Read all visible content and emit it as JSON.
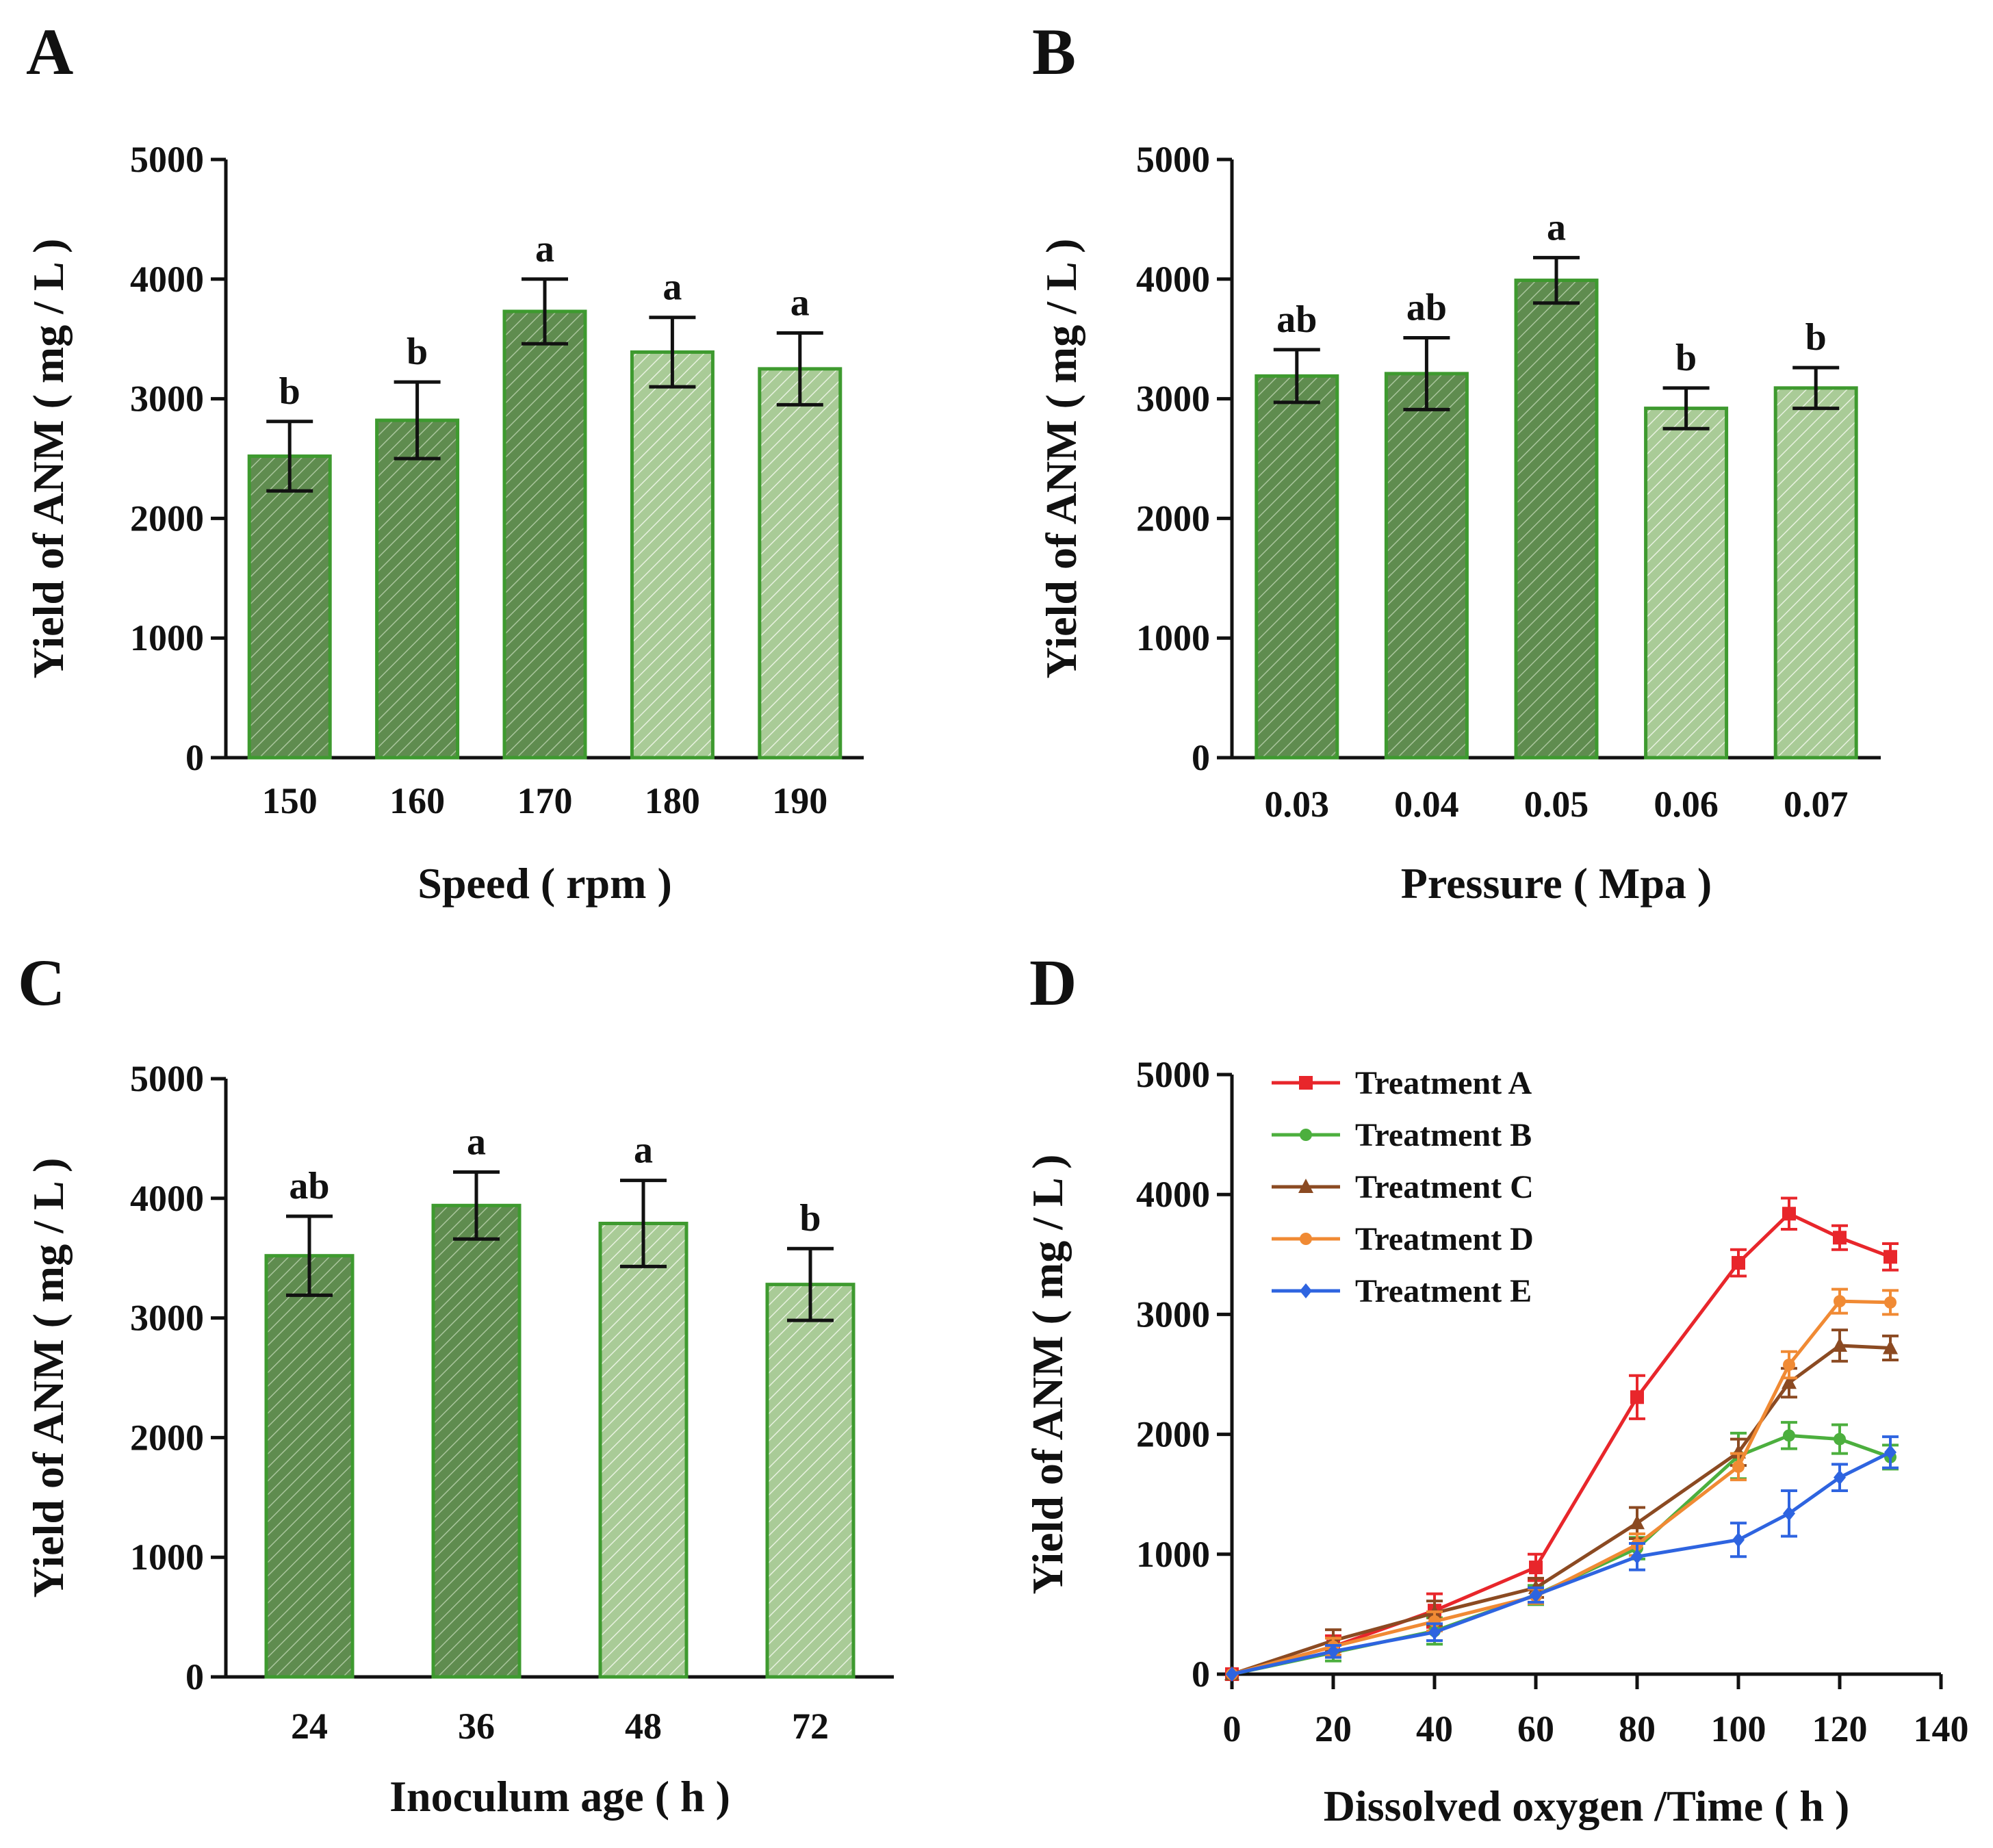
{
  "chart_data": [
    {
      "panel": "A",
      "type": "bar",
      "xlabel": "Speed ( rpm )",
      "ylabel": "Yield of ANM ( mg / L )",
      "ylim": [
        0,
        5000
      ],
      "yticks": [
        0,
        1000,
        2000,
        3000,
        4000,
        5000
      ],
      "categories": [
        "150",
        "160",
        "170",
        "180",
        "190"
      ],
      "values": [
        2520,
        2820,
        3730,
        3390,
        3250
      ],
      "errors": [
        290,
        320,
        270,
        290,
        300
      ],
      "significance": [
        "b",
        "b",
        "a",
        "a",
        "a"
      ],
      "shades": [
        "dark",
        "dark",
        "dark",
        "light",
        "light"
      ]
    },
    {
      "panel": "B",
      "type": "bar",
      "xlabel": "Pressure ( Mpa )",
      "ylabel": "Yield of ANM ( mg / L )",
      "ylim": [
        0,
        5000
      ],
      "yticks": [
        0,
        1000,
        2000,
        3000,
        4000,
        5000
      ],
      "categories": [
        "0.03",
        "0.04",
        "0.05",
        "0.06",
        "0.07"
      ],
      "values": [
        3190,
        3210,
        3990,
        2920,
        3090
      ],
      "errors": [
        220,
        300,
        190,
        170,
        170
      ],
      "significance": [
        "ab",
        "ab",
        "a",
        "b",
        "b"
      ],
      "shades": [
        "dark",
        "dark",
        "dark",
        "light",
        "light"
      ]
    },
    {
      "panel": "C",
      "type": "bar",
      "xlabel": "Inoculum age ( h )",
      "ylabel": "Yield of ANM ( mg / L )",
      "ylim": [
        0,
        5000
      ],
      "yticks": [
        0,
        1000,
        2000,
        3000,
        4000,
        5000
      ],
      "categories": [
        "24",
        "36",
        "48",
        "72"
      ],
      "values": [
        3520,
        3940,
        3790,
        3280
      ],
      "errors": [
        330,
        280,
        360,
        300
      ],
      "significance": [
        "ab",
        "a",
        "a",
        "b"
      ],
      "shades": [
        "dark",
        "dark",
        "light",
        "light"
      ]
    },
    {
      "panel": "D",
      "type": "line",
      "xlabel": "Dissolved oxygen  /Time ( h )",
      "ylabel": "Yield of ANM ( mg / L )",
      "xlim": [
        0,
        140
      ],
      "ylim": [
        0,
        5000
      ],
      "xticks": [
        0,
        20,
        40,
        60,
        80,
        100,
        120,
        140
      ],
      "yticks": [
        0,
        1000,
        2000,
        3000,
        4000,
        5000
      ],
      "legend_position": "top-left",
      "series": [
        {
          "name": "Treatment  A",
          "color": "#e8262b",
          "marker": "square",
          "x": [
            0,
            20,
            40,
            60,
            80,
            100,
            110,
            120,
            130
          ],
          "values": [
            0,
            230,
            530,
            890,
            2310,
            3430,
            3840,
            3640,
            3480
          ],
          "errors": [
            0,
            90,
            140,
            110,
            180,
            110,
            130,
            100,
            110
          ]
        },
        {
          "name": "Treatment  B",
          "color": "#4caf3e",
          "marker": "circle",
          "x": [
            0,
            20,
            40,
            60,
            80,
            100,
            110,
            120,
            130
          ],
          "values": [
            0,
            180,
            360,
            660,
            1050,
            1820,
            1990,
            1960,
            1810
          ],
          "errors": [
            0,
            70,
            110,
            80,
            90,
            190,
            110,
            120,
            100
          ]
        },
        {
          "name": "Treatment  C",
          "color": "#8b4a22",
          "marker": "triangle",
          "x": [
            0,
            20,
            40,
            60,
            80,
            100,
            110,
            120,
            130
          ],
          "values": [
            0,
            280,
            510,
            720,
            1260,
            1850,
            2430,
            2740,
            2720
          ],
          "errors": [
            0,
            90,
            100,
            80,
            130,
            110,
            120,
            130,
            100
          ]
        },
        {
          "name": "Treatment  D",
          "color": "#f08a34",
          "marker": "circle",
          "x": [
            0,
            20,
            40,
            60,
            80,
            100,
            110,
            120,
            130
          ],
          "values": [
            0,
            230,
            440,
            650,
            1080,
            1730,
            2580,
            3110,
            3100
          ],
          "errors": [
            0,
            70,
            80,
            60,
            90,
            110,
            110,
            100,
            100
          ]
        },
        {
          "name": "Treatment  E",
          "color": "#2e64e0",
          "marker": "diamond",
          "x": [
            0,
            20,
            40,
            60,
            80,
            100,
            110,
            120,
            130
          ],
          "values": [
            0,
            190,
            350,
            660,
            980,
            1120,
            1340,
            1640,
            1850
          ],
          "errors": [
            0,
            50,
            70,
            60,
            110,
            140,
            190,
            110,
            130
          ]
        }
      ]
    }
  ]
}
